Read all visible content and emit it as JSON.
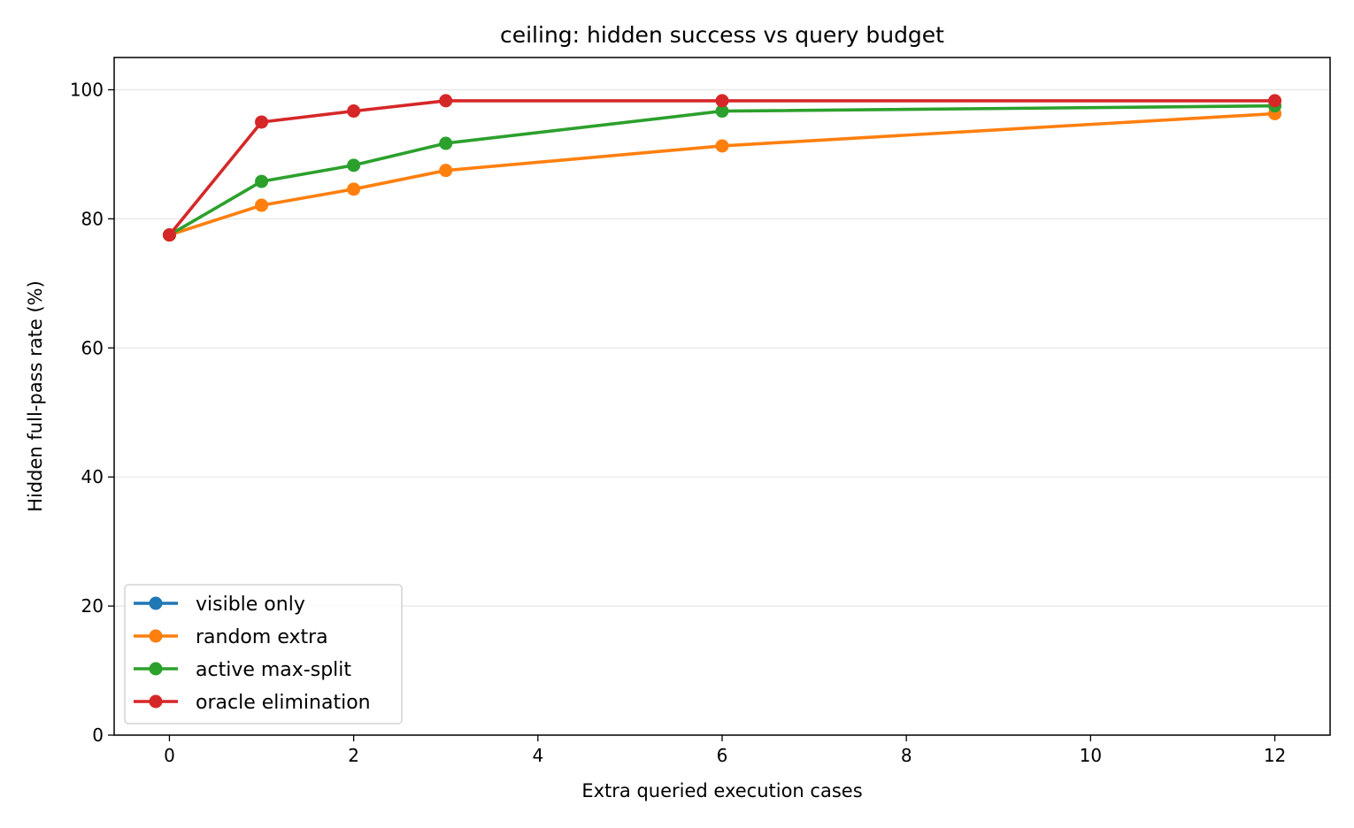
{
  "chart_data": {
    "type": "line",
    "title": "ceiling: hidden success vs query budget",
    "xlabel": "Extra queried execution cases",
    "ylabel": "Hidden full-pass rate (%)",
    "xlim": [
      -0.6,
      12.6
    ],
    "ylim": [
      0,
      105
    ],
    "xticks": [
      0,
      2,
      4,
      6,
      8,
      10,
      12
    ],
    "yticks": [
      0,
      20,
      40,
      60,
      80,
      100
    ],
    "grid": "horizontal",
    "legend_position": "lower-left",
    "x": [
      0,
      1,
      2,
      3,
      6,
      12
    ],
    "series": [
      {
        "name": "visible only",
        "color": "#1f77b4",
        "x": [
          0
        ],
        "values": [
          77.5
        ]
      },
      {
        "name": "random extra",
        "color": "#ff7f0e",
        "x": [
          0,
          1,
          2,
          3,
          6,
          12
        ],
        "values": [
          77.5,
          82.1,
          84.6,
          87.5,
          91.3,
          96.3
        ]
      },
      {
        "name": "active max-split",
        "color": "#2ca02c",
        "x": [
          0,
          1,
          2,
          3,
          6,
          12
        ],
        "values": [
          77.5,
          85.8,
          88.3,
          91.7,
          96.7,
          97.5
        ]
      },
      {
        "name": "oracle elimination",
        "color": "#d62728",
        "x": [
          0,
          1,
          2,
          3,
          6,
          12
        ],
        "values": [
          77.5,
          95.0,
          96.7,
          98.3,
          98.3,
          98.3
        ]
      }
    ]
  }
}
